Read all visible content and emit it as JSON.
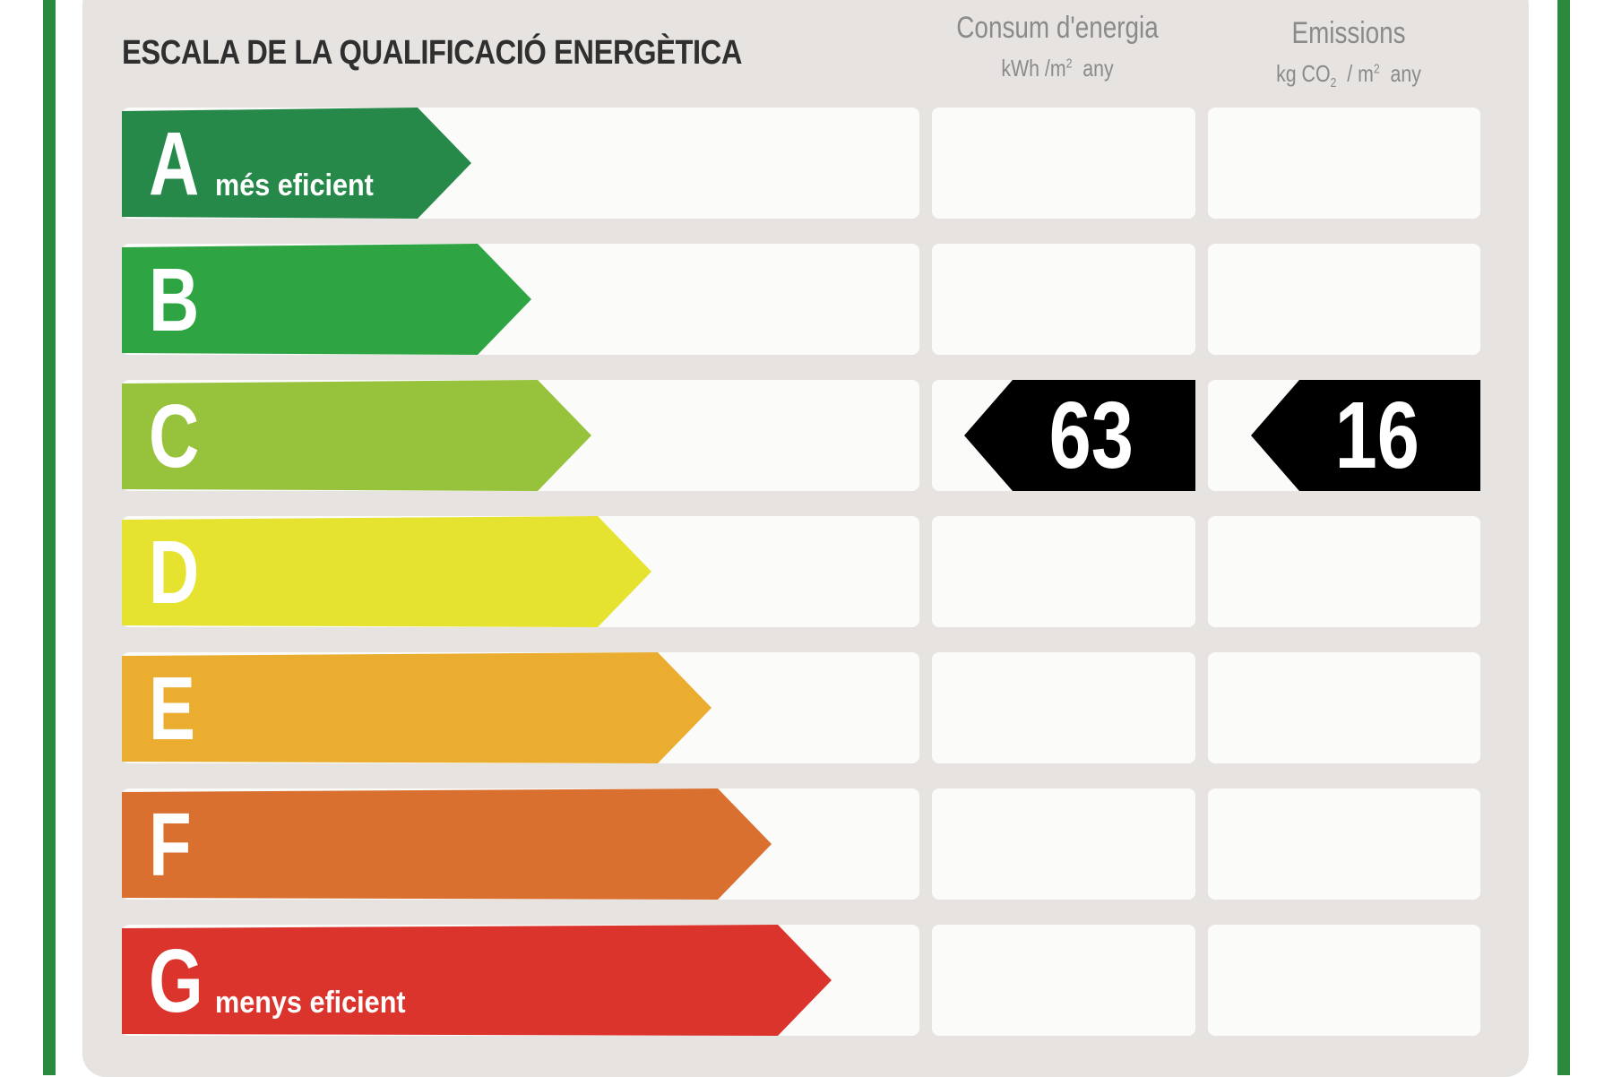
{
  "title": "ESCALA DE LA QUALIFICACIÓ ENERGÈTICA",
  "columns": {
    "energy": {
      "label": "Consum d'energia",
      "unit_main": "kWh /m",
      "unit_sup": "2",
      "unit_tail": "any"
    },
    "emissions": {
      "label": "Emissions",
      "unit_pre": "kg CO",
      "unit_sub": "2",
      "unit_mid": "/ m",
      "unit_sup": "2",
      "unit_tail": "any"
    }
  },
  "classes": [
    {
      "letter": "A",
      "sublabel": "més eficient",
      "color": "#26894a"
    },
    {
      "letter": "B",
      "sublabel": "",
      "color": "#2ea542"
    },
    {
      "letter": "C",
      "sublabel": "",
      "color": "#97c23c"
    },
    {
      "letter": "D",
      "sublabel": "",
      "color": "#e6e230"
    },
    {
      "letter": "E",
      "sublabel": "",
      "color": "#eaad2f"
    },
    {
      "letter": "F",
      "sublabel": "",
      "color": "#d9702f"
    },
    {
      "letter": "G",
      "sublabel": "menys eficient",
      "color": "#db342d"
    }
  ],
  "rating": {
    "class": "C",
    "energy_value": "63",
    "emissions_value": "16"
  },
  "colors": {
    "border": "#2b8a3e",
    "panel": "#e6e3e1",
    "tag": "#000000"
  }
}
